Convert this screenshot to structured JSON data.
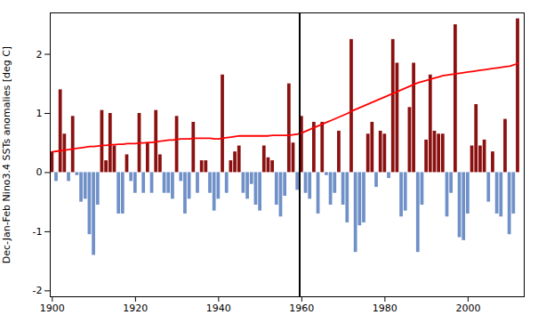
{
  "chart_data": {
    "type": "bar",
    "ylabel": "Dec-Jan-Feb Nino3.4 SSTs anomalies [deg C]",
    "x": [
      1900,
      1901,
      1902,
      1903,
      1904,
      1905,
      1906,
      1907,
      1908,
      1909,
      1910,
      1911,
      1912,
      1913,
      1914,
      1915,
      1916,
      1917,
      1918,
      1919,
      1920,
      1921,
      1922,
      1923,
      1924,
      1925,
      1926,
      1927,
      1928,
      1929,
      1930,
      1931,
      1932,
      1933,
      1934,
      1935,
      1936,
      1937,
      1938,
      1939,
      1940,
      1941,
      1942,
      1943,
      1944,
      1945,
      1946,
      1947,
      1948,
      1949,
      1950,
      1951,
      1952,
      1953,
      1954,
      1955,
      1956,
      1957,
      1958,
      1959,
      1960,
      1961,
      1962,
      1963,
      1964,
      1965,
      1966,
      1967,
      1968,
      1969,
      1970,
      1971,
      1972,
      1973,
      1974,
      1975,
      1976,
      1977,
      1978,
      1979,
      1980,
      1981,
      1982,
      1983,
      1984,
      1985,
      1986,
      1987,
      1988,
      1989,
      1990,
      1991,
      1992,
      1993,
      1994,
      1995,
      1996,
      1997,
      1998,
      1999,
      2000,
      2001,
      2002,
      2003,
      2004,
      2005,
      2006,
      2007,
      2008,
      2009,
      2010,
      2011,
      2012
    ],
    "series": [
      {
        "type": "bar",
        "values": [
          0.35,
          -0.15,
          1.4,
          0.65,
          -0.15,
          0.95,
          -0.05,
          -0.5,
          -0.45,
          -1.05,
          -1.4,
          -0.55,
          1.05,
          0.2,
          1.0,
          0.45,
          -0.7,
          -0.7,
          0.3,
          -0.15,
          -0.35,
          1.0,
          -0.35,
          0.5,
          -0.35,
          1.05,
          0.3,
          -0.35,
          -0.35,
          -0.45,
          0.95,
          -0.15,
          -0.7,
          -0.45,
          0.85,
          -0.35,
          0.2,
          0.2,
          -0.35,
          -0.65,
          -0.45,
          1.65,
          -0.35,
          0.2,
          0.35,
          0.45,
          -0.35,
          -0.45,
          -0.2,
          -0.55,
          -0.65,
          0.45,
          0.25,
          0.2,
          -0.55,
          -0.75,
          -0.4,
          1.5,
          0.5,
          -0.3,
          0.95,
          -0.35,
          -0.45,
          0.85,
          -0.7,
          0.85,
          -0.05,
          -0.55,
          -0.35,
          0.7,
          -0.55,
          -0.85,
          2.25,
          -1.35,
          -0.9,
          -0.85,
          0.65,
          0.85,
          -0.25,
          0.7,
          0.65,
          -0.1,
          2.25,
          1.85,
          -0.75,
          -0.65,
          1.1,
          1.85,
          -1.35,
          -0.55,
          0.55,
          1.65,
          0.7,
          0.65,
          0.65,
          -0.75,
          -0.35,
          2.5,
          -1.1,
          -1.15,
          -0.7,
          0.45,
          1.15,
          0.45,
          0.55,
          -0.5,
          0.35,
          -0.7,
          -0.75,
          0.9,
          -1.05,
          -0.7,
          2.6
        ],
        "colors": [
          "#8B1010",
          "#7090C8",
          "#8B1010",
          "#8B1010",
          "#7090C8",
          "#8B1010",
          "#7090C8",
          "#7090C8",
          "#7090C8",
          "#7090C8",
          "#7090C8",
          "#7090C8",
          "#8B1010",
          "#8B1010",
          "#8B1010",
          "#8B1010",
          "#7090C8",
          "#7090C8",
          "#8B1010",
          "#7090C8",
          "#7090C8",
          "#8B1010",
          "#7090C8",
          "#8B1010",
          "#7090C8",
          "#8B1010",
          "#8B1010",
          "#7090C8",
          "#7090C8",
          "#7090C8",
          "#8B1010",
          "#7090C8",
          "#7090C8",
          "#7090C8",
          "#8B1010",
          "#7090C8",
          "#8B1010",
          "#8B1010",
          "#7090C8",
          "#7090C8",
          "#7090C8",
          "#8B1010",
          "#7090C8",
          "#8B1010",
          "#8B1010",
          "#8B1010",
          "#7090C8",
          "#7090C8",
          "#7090C8",
          "#7090C8",
          "#7090C8",
          "#8B1010",
          "#8B1010",
          "#8B1010",
          "#7090C8",
          "#7090C8",
          "#7090C8",
          "#8B1010",
          "#8B1010",
          "#7090C8",
          "#8B1010",
          "#7090C8",
          "#7090C8",
          "#8B1010",
          "#7090C8",
          "#8B1010",
          "#7090C8",
          "#7090C8",
          "#7090C8",
          "#8B1010",
          "#7090C8",
          "#7090C8",
          "#8B1010",
          "#7090C8",
          "#7090C8",
          "#7090C8",
          "#8B1010",
          "#8B1010",
          "#7090C8",
          "#8B1010",
          "#8B1010",
          "#7090C8",
          "#8B1010",
          "#8B1010",
          "#7090C8",
          "#7090C8",
          "#8B1010",
          "#8B1010",
          "#7090C8",
          "#7090C8",
          "#8B1010",
          "#8B1010",
          "#8B1010",
          "#8B1010",
          "#8B1010",
          "#7090C8",
          "#7090C8",
          "#8B1010",
          "#7090C8",
          "#7090C8",
          "#7090C8",
          "#8B1010",
          "#8B1010",
          "#8B1010",
          "#8B1010",
          "#7090C8",
          "#8B1010",
          "#7090C8",
          "#7090C8",
          "#8B1010",
          "#7090C8",
          "#7090C8",
          "#8B1010"
        ]
      },
      {
        "type": "line",
        "color": "#FF0000",
        "values": [
          0.35,
          0.36,
          0.37,
          0.38,
          0.39,
          0.4,
          0.41,
          0.42,
          0.43,
          0.44,
          0.44,
          0.45,
          0.46,
          0.46,
          0.47,
          0.47,
          0.48,
          0.48,
          0.49,
          0.49,
          0.49,
          0.5,
          0.5,
          0.51,
          0.51,
          0.52,
          0.53,
          0.54,
          0.55,
          0.55,
          0.56,
          0.57,
          0.57,
          0.57,
          0.58,
          0.58,
          0.58,
          0.58,
          0.58,
          0.57,
          0.57,
          0.58,
          0.59,
          0.6,
          0.61,
          0.62,
          0.62,
          0.62,
          0.62,
          0.62,
          0.62,
          0.62,
          0.62,
          0.63,
          0.63,
          0.63,
          0.63,
          0.63,
          0.64,
          0.65,
          0.67,
          0.7,
          0.73,
          0.76,
          0.79,
          0.82,
          0.85,
          0.88,
          0.91,
          0.94,
          0.97,
          1.0,
          1.04,
          1.07,
          1.1,
          1.13,
          1.16,
          1.19,
          1.22,
          1.25,
          1.28,
          1.31,
          1.34,
          1.37,
          1.4,
          1.43,
          1.46,
          1.49,
          1.52,
          1.54,
          1.56,
          1.58,
          1.6,
          1.62,
          1.64,
          1.65,
          1.66,
          1.67,
          1.68,
          1.69,
          1.7,
          1.71,
          1.72,
          1.73,
          1.74,
          1.75,
          1.76,
          1.77,
          1.78,
          1.79,
          1.8,
          1.82,
          1.85
        ]
      }
    ],
    "vline": {
      "x": 1959.5,
      "color": "#000000"
    },
    "xlim": [
      1899.5,
      2013.5
    ],
    "xticks": [
      1900,
      1920,
      1940,
      1960,
      1980,
      2000
    ],
    "ylim": [
      -2.1,
      2.7
    ],
    "yticks": [
      -2,
      -1,
      0,
      1,
      2
    ],
    "grid": false
  }
}
